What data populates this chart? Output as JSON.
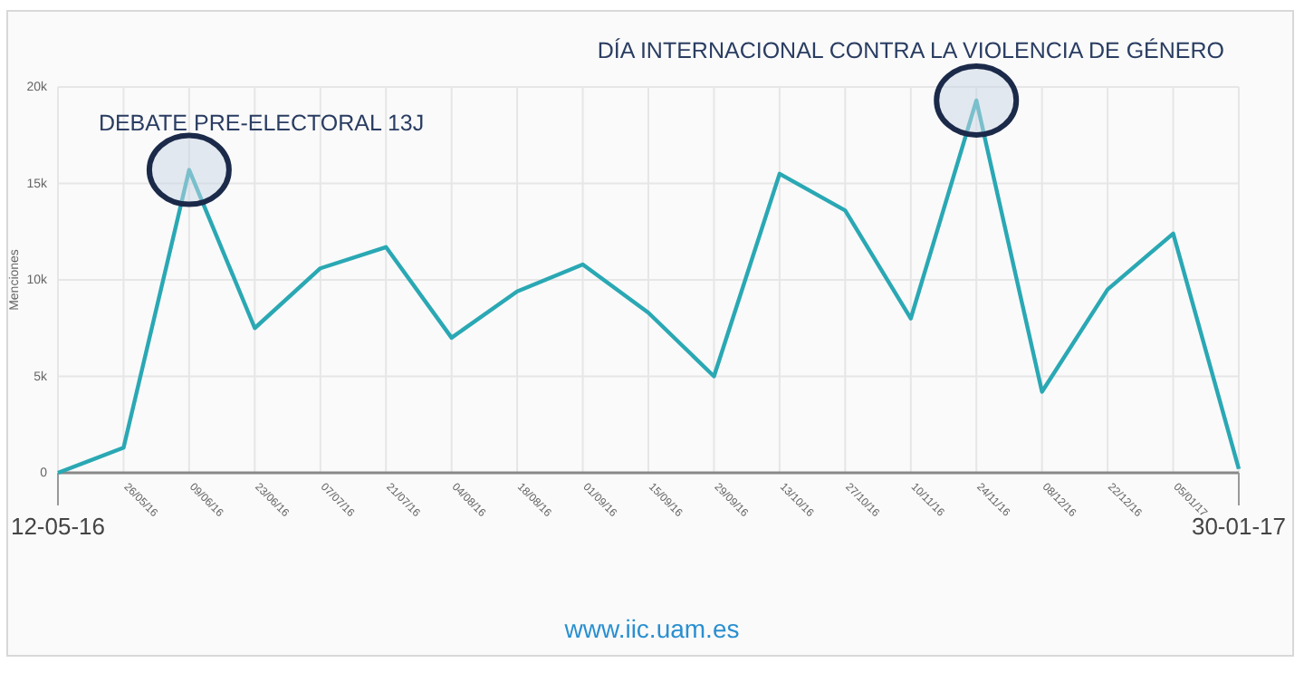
{
  "chart_data": {
    "type": "line",
    "ylabel": "Menciones",
    "categories": [
      "12-05-16",
      "26/05/16",
      "09/06/16",
      "23/06/16",
      "07/07/16",
      "21/07/16",
      "04/08/16",
      "18/08/16",
      "01/09/16",
      "15/09/16",
      "29/09/16",
      "13/10/16",
      "27/10/16",
      "10/11/16",
      "24/11/16",
      "08/12/16",
      "22/12/16",
      "05/01/17",
      "30-01-17"
    ],
    "series": [
      {
        "color": "#2aa8b4",
        "values": [
          0,
          1300,
          15700,
          7500,
          10600,
          11700,
          7000,
          9400,
          10800,
          8300,
          5000,
          15500,
          13600,
          8000,
          19300,
          4200,
          9500,
          12400,
          200
        ]
      }
    ],
    "ylim": [
      0,
      20000
    ],
    "yticks": [
      {
        "value": 0,
        "label": "0"
      },
      {
        "value": 5000,
        "label": "5k"
      },
      {
        "value": 10000,
        "label": "10k"
      },
      {
        "value": 15000,
        "label": "15k"
      },
      {
        "value": 20000,
        "label": "20k"
      }
    ],
    "grid": true,
    "marker": "none",
    "line_style": "solid",
    "annotations": [
      {
        "text": "DEBATE PRE-ELECTORAL 13J",
        "x": "09/06/16",
        "y": 15700
      },
      {
        "text": "DÍA INTERNACIONAL CONTRA LA VIOLENCIA DE GÉNERO",
        "x": "24/11/16",
        "y": 19300
      },
      "www.iic.uam.es"
    ]
  }
}
